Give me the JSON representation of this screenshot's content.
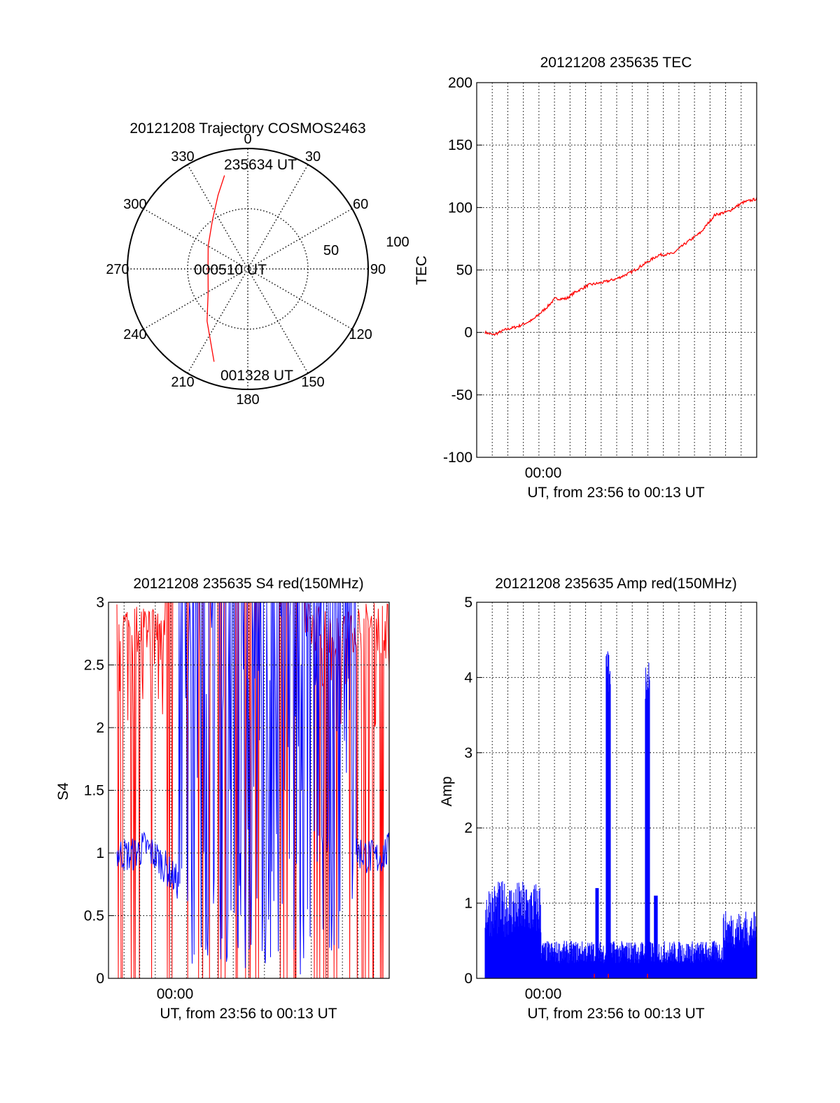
{
  "chart_data": [
    {
      "type": "polar",
      "title": "20121208 Trajectory COSMOS2463",
      "azimuth_labels": [
        "0",
        "30",
        "60",
        "90",
        "120",
        "150",
        "180",
        "210",
        "240",
        "270",
        "300",
        "330"
      ],
      "elevation_labels": [
        "50",
        "100"
      ],
      "series": [
        {
          "color": "#ff0000",
          "points": [
            {
              "az": 346,
              "r": 80
            },
            {
              "az": 338,
              "r": 66
            },
            {
              "az": 324,
              "r": 50
            },
            {
              "az": 300,
              "r": 38
            },
            {
              "az": 270,
              "r": 33
            },
            {
              "az": 240,
              "r": 38
            },
            {
              "az": 218,
              "r": 55
            },
            {
              "az": 200,
              "r": 82
            }
          ]
        }
      ],
      "annotations": [
        {
          "text": "235634 UT"
        },
        {
          "text": "000510 UT"
        },
        {
          "text": "001328 UT"
        }
      ]
    },
    {
      "type": "line",
      "title": "20121208 235635 TEC",
      "xlabel": "UT, from 23:56 to 00:13 UT",
      "ylabel": "TEC",
      "xtick_label": "00:00",
      "ylim": [
        -100,
        200
      ],
      "yticks": [
        -100,
        -50,
        0,
        50,
        100,
        150,
        200
      ],
      "grid": true,
      "series": [
        {
          "color": "#ff0000",
          "x": [
            0.03,
            0.06,
            0.1,
            0.15,
            0.2,
            0.25,
            0.28,
            0.32,
            0.35,
            0.4,
            0.45,
            0.5,
            0.55,
            0.6,
            0.65,
            0.7,
            0.75,
            0.8,
            0.85,
            0.9,
            0.95,
            1.0
          ],
          "y": [
            0,
            -2,
            2,
            5,
            10,
            20,
            27,
            27,
            32,
            38,
            40,
            43,
            48,
            55,
            62,
            63,
            72,
            80,
            94,
            97,
            104,
            107
          ]
        }
      ]
    },
    {
      "type": "line",
      "title": "20121208 235635 S4 red(150MHz)",
      "xlabel": "UT, from 23:56 to 00:13 UT",
      "ylabel": "S4",
      "xtick_label": "00:00",
      "ylim": [
        0,
        3
      ],
      "yticks": [
        "0",
        "0.5",
        "1",
        "1.5",
        "2",
        "2.5",
        "3"
      ],
      "grid": true,
      "series": [
        {
          "color": "#ff0000",
          "description_values": "spiky, mostly saturated at 3"
        },
        {
          "color": "#0000ff",
          "x": [
            0.03,
            0.08,
            0.13,
            0.18,
            0.25,
            0.85,
            0.9,
            0.95,
            1.0
          ],
          "y": [
            1.0,
            0.98,
            1.05,
            0.95,
            0.75,
            1.05,
            1.0,
            0.95,
            1.02
          ]
        }
      ]
    },
    {
      "type": "line",
      "title": "20121208 235635 Amp red(150MHz)",
      "xlabel": "UT, from 23:56 to 00:13 UT",
      "ylabel": "Amp",
      "xtick_label": "00:00",
      "ylim": [
        0,
        5
      ],
      "yticks": [
        0,
        1,
        2,
        3,
        4,
        5
      ],
      "grid": true,
      "series": [
        {
          "color": "#0000ff",
          "peaks": [
            {
              "x": 0.47,
              "y": 4.45
            },
            {
              "x": 0.61,
              "y": 4.28
            }
          ]
        },
        {
          "color": "#ff0000"
        }
      ]
    }
  ],
  "colors": {
    "red": "#ff0000",
    "blue": "#0000ff",
    "grid": "#000000"
  }
}
